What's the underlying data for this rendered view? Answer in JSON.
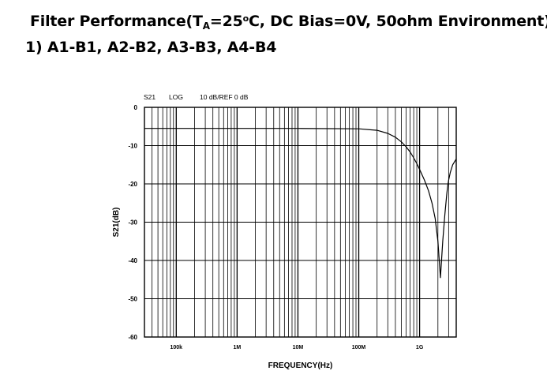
{
  "header": {
    "title_prefix": "Filter Performance(T",
    "title_subscript": "A",
    "title_middle": "=25",
    "title_superscript": "o",
    "title_suffix": "C, DC Bias=0V, 50ohm Environment)",
    "subtitle": "1) A1-B1, A2-B2, A3-B3, A4-B4"
  },
  "chart_data": {
    "type": "line",
    "scale_x": "log",
    "header_labels": [
      "S21",
      "LOG",
      "10 dB/REF 0 dB"
    ],
    "xlabel": "FREQUENCY(Hz)",
    "ylabel": "S21(dB)",
    "xlim": [
      30000,
      4000000000
    ],
    "ylim": [
      -60,
      0
    ],
    "x_ticks": [
      {
        "value": 100000,
        "label": "100k"
      },
      {
        "value": 1000000,
        "label": "1M"
      },
      {
        "value": 10000000,
        "label": "10M"
      },
      {
        "value": 100000000,
        "label": "100M"
      },
      {
        "value": 1000000000,
        "label": "1G"
      }
    ],
    "y_ticks": [
      0,
      -10,
      -20,
      -30,
      -40,
      -50,
      -60
    ],
    "grid": true,
    "series": [
      {
        "color": "#000000",
        "x": [
          30000,
          100000,
          1000000,
          10000000,
          100000000,
          200000000,
          300000000,
          400000000,
          500000000,
          600000000,
          700000000,
          800000000,
          900000000,
          1000000000,
          1200000000,
          1400000000,
          1600000000,
          1800000000,
          2000000000,
          2200000000,
          2400000000,
          2600000000,
          2800000000,
          2900000000,
          3000000000,
          3200000000,
          3500000000,
          4000000000
        ],
        "y": [
          -5.5,
          -5.5,
          -5.5,
          -5.5,
          -5.6,
          -6.0,
          -6.8,
          -7.8,
          -9.0,
          -10.3,
          -11.7,
          -13.2,
          -14.7,
          -16.2,
          -19.0,
          -21.8,
          -25.0,
          -29.0,
          -35.0,
          -44.5,
          -35.0,
          -28.0,
          -22.5,
          -20.5,
          -19.0,
          -17.0,
          -15.0,
          -13.5
        ]
      }
    ]
  }
}
